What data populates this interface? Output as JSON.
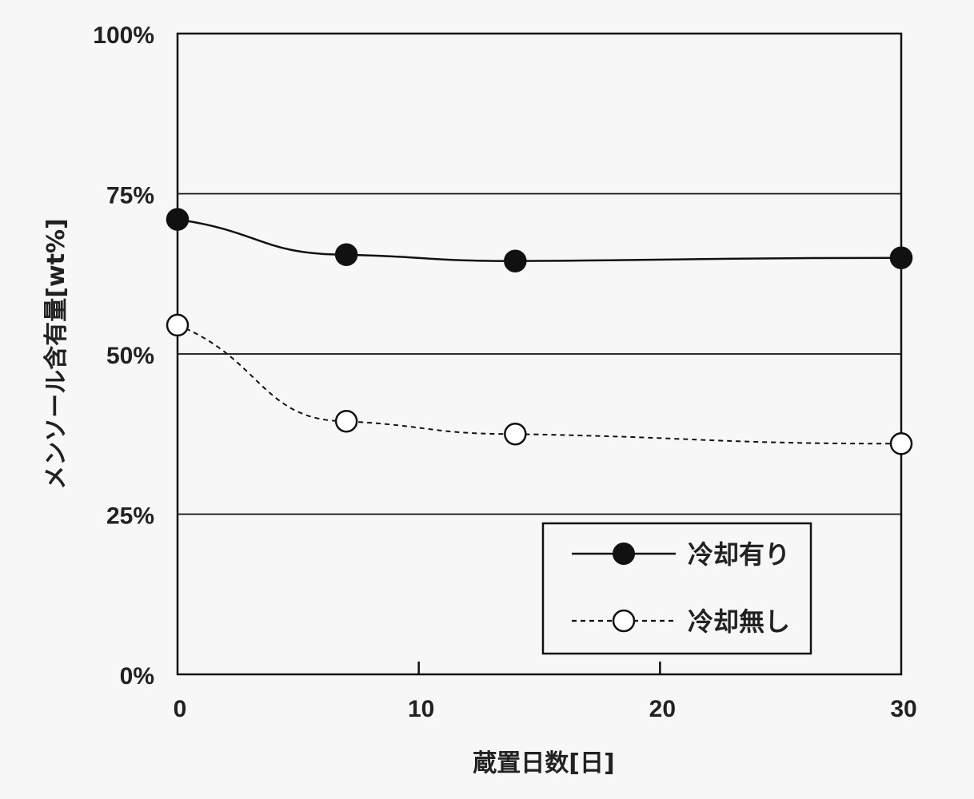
{
  "chart_data": {
    "type": "line",
    "xlabel": "蔵置日数[日]",
    "ylabel": "メンソール含有量[wt%]",
    "xlim": [
      0,
      30
    ],
    "ylim": [
      0,
      100
    ],
    "x_ticks": [
      "0",
      "10",
      "20",
      "30"
    ],
    "y_ticks": [
      "0%",
      "25%",
      "50%",
      "75%",
      "100%"
    ],
    "grid": "horizontal",
    "legend_position": "bottom-right",
    "series": [
      {
        "name": "冷却有り",
        "style": "solid-filled",
        "color": "#111111",
        "x": [
          0,
          7,
          14,
          30
        ],
        "values": [
          71,
          65.5,
          64.5,
          65
        ]
      },
      {
        "name": "冷却無し",
        "style": "dashed-open",
        "color": "#111111",
        "x": [
          0,
          7,
          14,
          30
        ],
        "values": [
          54.5,
          39.5,
          37.5,
          36
        ]
      }
    ]
  }
}
